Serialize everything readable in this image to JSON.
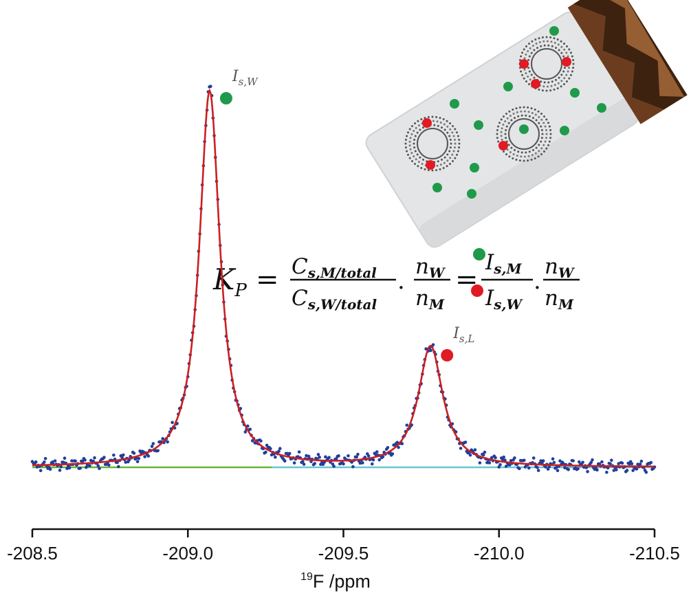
{
  "chart_data": {
    "type": "line",
    "title": "",
    "xlabel_sup": "19",
    "xlabel": "F /ppm",
    "xlim": [
      -208.5,
      -210.5
    ],
    "x_reversed": true,
    "x_ticks": [
      -208.5,
      -209.0,
      -209.5,
      -210.0,
      -210.5
    ],
    "x_tick_labels": [
      "-208.5",
      "-209.0",
      "-209.5",
      "-210.0",
      "-210.5"
    ],
    "ylabel": "",
    "y_axis_shown": false,
    "series": [
      {
        "name": "experimental spectrum",
        "style": "blue dots",
        "color": "#1f3f9a"
      },
      {
        "name": "total fit",
        "style": "line",
        "color": "#cc1f1f"
      },
      {
        "name": "baseline (water region)",
        "style": "line",
        "color": "#6ab23a"
      },
      {
        "name": "baseline (lipid region)",
        "style": "line",
        "color": "#6cc4d6"
      }
    ],
    "peaks": [
      {
        "name": "I_s,W",
        "label_main": "I",
        "label_sub": "s,W",
        "center_ppm": -209.07,
        "relative_height": 1.0,
        "marker_color": "#1f9a4a"
      },
      {
        "name": "I_s,L",
        "label_main": "I",
        "label_sub": "s,L",
        "center_ppm": -209.78,
        "relative_height": 0.32,
        "marker_color": "#e01b24"
      }
    ],
    "equation": {
      "lhs": "K",
      "lhs_sub": "P",
      "frac1_num": "C",
      "frac1_num_sub": "s,M/total",
      "frac1_den": "C",
      "frac1_den_sub": "s,W/total",
      "frac2_num": "n",
      "frac2_num_sub": "W",
      "frac2_den": "n",
      "frac2_den_sub": "M",
      "frac3_num": "I",
      "frac3_num_sub": "s,M",
      "frac3_den": "I",
      "frac3_den_sub": "s,W",
      "frac4_num": "n",
      "frac4_num_sub": "W",
      "frac4_den": "n",
      "frac4_den_sub": "M",
      "equals": "=",
      "dot": "."
    },
    "colors": {
      "fit": "#cc1f1f",
      "data": "#1f3f9a",
      "baseline_left": "#6ab23a",
      "baseline_right": "#6cc4d6",
      "water_marker": "#1f9a4a",
      "lipid_marker": "#e01b24",
      "cylinder": "#e4e5e6",
      "cap": "#6b3d1e"
    }
  }
}
